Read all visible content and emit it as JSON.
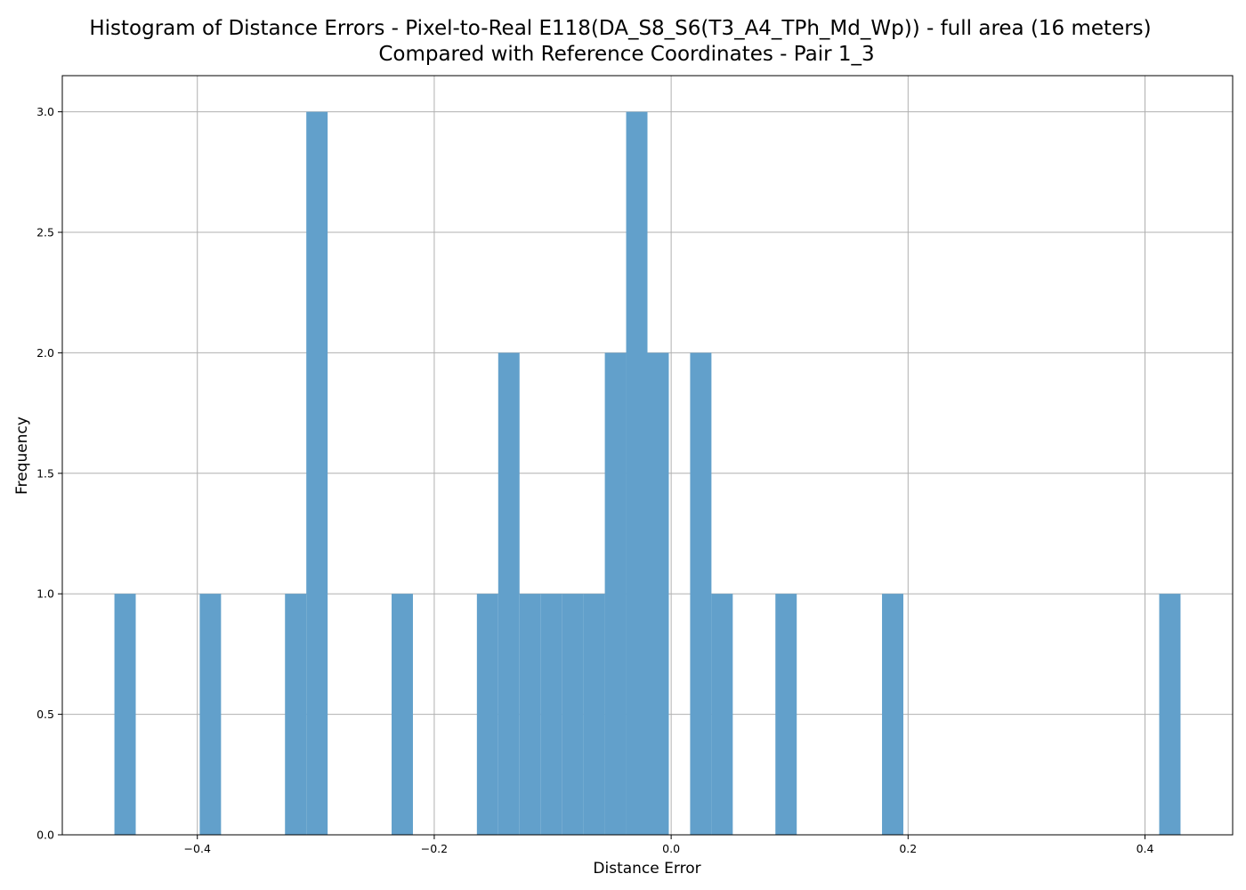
{
  "chart_data": {
    "type": "bar",
    "title_lines": [
      "Histogram of Distance Errors - Pixel-to-Real E118(DA_S8_S6(T3_A4_TPh_Md_Wp)) - full area (16 meters)",
      "Compared with Reference Coordinates - Pair 1_3"
    ],
    "xlabel": "Distance Error",
    "ylabel": "Frequency",
    "xlim": [
      -0.514,
      0.474
    ],
    "ylim": [
      0,
      3.15
    ],
    "x_ticks": [
      {
        "value": -0.4,
        "label": "−0.4"
      },
      {
        "value": -0.2,
        "label": "−0.2"
      },
      {
        "value": 0.0,
        "label": "0.0"
      },
      {
        "value": 0.2,
        "label": "0.2"
      },
      {
        "value": 0.4,
        "label": "0.4"
      }
    ],
    "y_ticks": [
      {
        "value": 0.0,
        "label": "0.0"
      },
      {
        "value": 0.5,
        "label": "0.5"
      },
      {
        "value": 1.0,
        "label": "1.0"
      },
      {
        "value": 1.5,
        "label": "1.5"
      },
      {
        "value": 2.0,
        "label": "2.0"
      },
      {
        "value": 2.5,
        "label": "2.5"
      },
      {
        "value": 3.0,
        "label": "3.0"
      }
    ],
    "grid": true,
    "bar_color": "#62a0cb",
    "bin_width": 0.018,
    "bins": [
      {
        "x0": -0.47,
        "count": 1
      },
      {
        "x0": -0.398,
        "count": 1
      },
      {
        "x0": -0.326,
        "count": 1
      },
      {
        "x0": -0.308,
        "count": 3
      },
      {
        "x0": -0.236,
        "count": 1
      },
      {
        "x0": -0.164,
        "count": 1
      },
      {
        "x0": -0.146,
        "count": 2
      },
      {
        "x0": -0.128,
        "count": 1
      },
      {
        "x0": -0.11,
        "count": 1
      },
      {
        "x0": -0.092,
        "count": 1
      },
      {
        "x0": -0.074,
        "count": 1
      },
      {
        "x0": -0.056,
        "count": 2
      },
      {
        "x0": -0.038,
        "count": 3
      },
      {
        "x0": -0.02,
        "count": 2
      },
      {
        "x0": 0.016,
        "count": 2
      },
      {
        "x0": 0.034,
        "count": 1
      },
      {
        "x0": 0.088,
        "count": 1
      },
      {
        "x0": 0.178,
        "count": 1
      },
      {
        "x0": 0.412,
        "count": 1
      }
    ]
  }
}
